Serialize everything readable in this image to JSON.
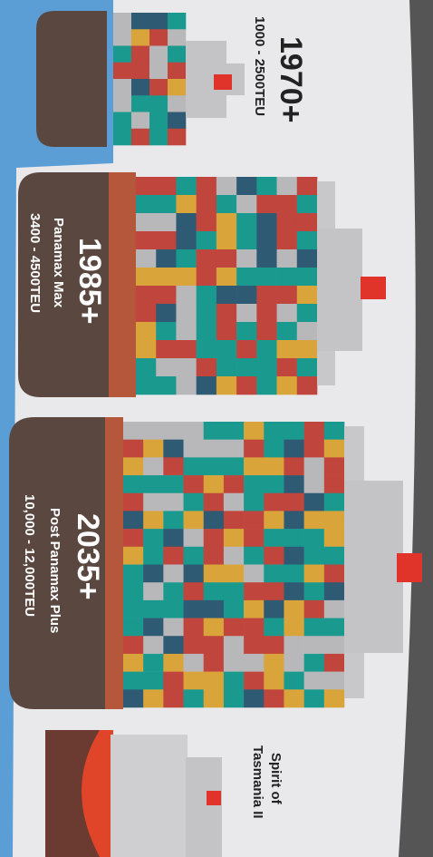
{
  "ships": [
    {
      "year": "1970+",
      "class": null,
      "capacity": "1000 - 2500TEU"
    },
    {
      "year": "1985+",
      "class": "Panamax Max",
      "capacity": "3400 - 4500TEU"
    },
    {
      "year": "2035+",
      "class": "Post Panamax Plus",
      "capacity": "10,000 - 12,000TEU"
    }
  ],
  "ferry": {
    "line1": "Spirit of",
    "line2": "Tasmania II"
  }
}
